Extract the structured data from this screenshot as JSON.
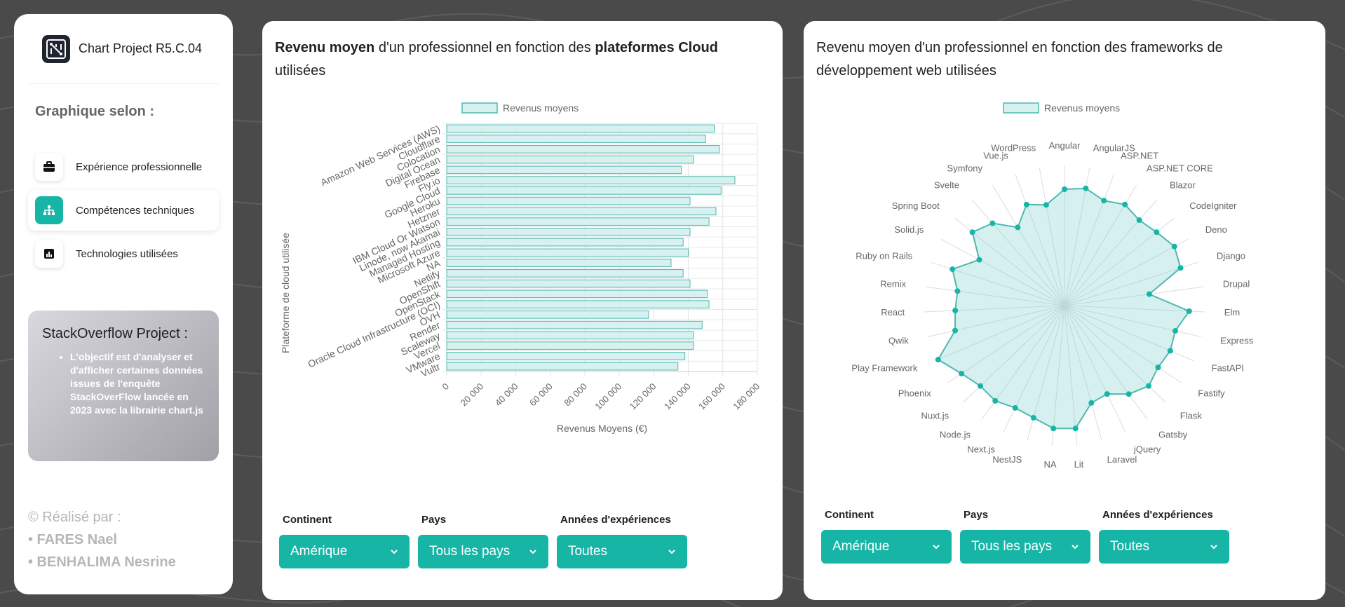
{
  "sidebar": {
    "brand_name": "Chart Project R5.C.04",
    "graph_title": "Graphique selon :",
    "nav_items": [
      {
        "label": "Expérience professionnelle",
        "icon": "briefcase-icon",
        "active": false
      },
      {
        "label": "Compétences techniques",
        "icon": "sitemap-icon",
        "active": true
      },
      {
        "label": "Technologies utilisées",
        "icon": "bar-chart-icon",
        "active": false
      }
    ],
    "info": {
      "title": "StackOverflow Project :",
      "text": "L'objectif est d'analyser et d'afficher certaines données issues de l'enquête StackOverFlow lancée en 2023 avec la librairie chart.js"
    },
    "credits": {
      "heading": "© Réalisé par :",
      "authors": [
        "• FARES Nael",
        "• BENHALIMA Nesrine"
      ]
    }
  },
  "panel1": {
    "title_pre": "Revenu moyen",
    "title_mid": " d'un professionnel en fonction des ",
    "title_bold": "plateformes Cloud",
    "title_post": " utilisées",
    "filters": [
      {
        "label": "Continent",
        "value": "Amérique"
      },
      {
        "label": "Pays",
        "value": "Tous les pays"
      },
      {
        "label": "Années d'expériences",
        "value": "Toutes"
      }
    ]
  },
  "panel2": {
    "title": "Revenu moyen d'un professionnel en fonction des frameworks de développement web utilisées",
    "filters": [
      {
        "label": "Continent",
        "value": "Amérique"
      },
      {
        "label": "Pays",
        "value": "Tous les pays"
      },
      {
        "label": "Années d'expériences",
        "value": "Toutes"
      }
    ]
  },
  "colors": {
    "accent": "#17b5a6",
    "bar_fill": "#d6f1ef",
    "bar_stroke": "#4fb8b0"
  },
  "chart_data": [
    {
      "type": "bar",
      "orientation": "horizontal",
      "legend": "Revenus moyens",
      "xlabel": "Revenus Moyens (€)",
      "ylabel": "Plateforme de cloud utilisée",
      "xlim": [
        0,
        180000
      ],
      "xticks": [
        "0",
        "20 000",
        "40 000",
        "60 000",
        "80 000",
        "100 000",
        "120 000",
        "140 000",
        "160 000",
        "180 000"
      ],
      "categories": [
        "Amazon Web Services (AWS)",
        "Cloudflare",
        "Colocation",
        "Digital Ocean",
        "Firebase",
        "Fly.io",
        "Google Cloud",
        "Heroku",
        "Hetzner",
        "IBM Cloud Or Watson",
        "Linode, now Akamai",
        "Managed Hosting",
        "Microsoft Azure",
        "NA",
        "Netlify",
        "OpenShift",
        "OpenStack",
        "Oracle Cloud Infrastructure (OCI)",
        "OVH",
        "Render",
        "Scaleway",
        "Vercel",
        "VMware",
        "Vultr"
      ],
      "values": [
        155000,
        150000,
        158000,
        143000,
        136000,
        167000,
        159000,
        141000,
        156000,
        152000,
        141000,
        137000,
        140000,
        130000,
        137000,
        141000,
        151000,
        152000,
        117000,
        148000,
        143000,
        143000,
        138000,
        134000
      ],
      "grid": true,
      "legend_position": "top"
    },
    {
      "type": "radar",
      "legend": "Revenus moyens",
      "categories": [
        "Angular",
        "AngularJS",
        "ASP.NET",
        "ASP.NET CORE",
        "Blazor",
        "CodeIgniter",
        "Deno",
        "Django",
        "Drupal",
        "Elm",
        "Express",
        "FastAPI",
        "Fastify",
        "Flask",
        "Gatsby",
        "jQuery",
        "Laravel",
        "Lit",
        "NA",
        "NestJS",
        "Next.js",
        "Node.js",
        "Nuxt.js",
        "Phoenix",
        "Play Framework",
        "Qwik",
        "React",
        "Remix",
        "Ruby on Rails",
        "Solid.js",
        "Spring Boot",
        "Svelte",
        "Symfony",
        "Vue.js",
        "WordPress"
      ],
      "values": [
        0.83,
        0.85,
        0.8,
        0.84,
        0.81,
        0.84,
        0.89,
        0.87,
        0.61,
        0.89,
        0.81,
        0.82,
        0.8,
        0.83,
        0.78,
        0.7,
        0.72,
        0.88,
        0.88,
        0.83,
        0.81,
        0.84,
        0.83,
        0.88,
        0.98,
        0.8,
        0.78,
        0.77,
        0.84,
        0.69,
        0.84,
        0.78,
        0.65,
        0.77,
        0.73
      ],
      "legend_position": "top"
    }
  ]
}
